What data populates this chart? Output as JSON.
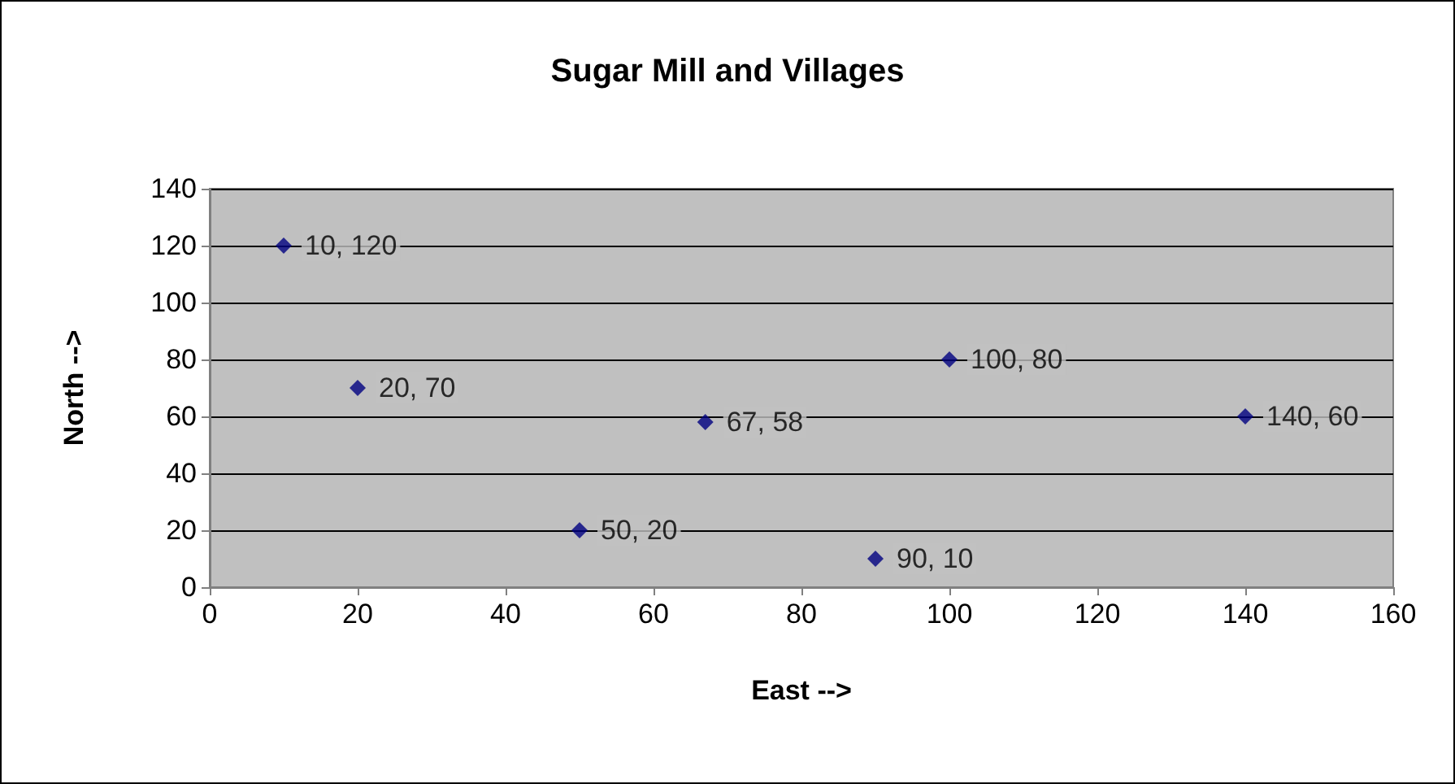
{
  "chart_data": {
    "type": "scatter",
    "title": "Sugar Mill and Villages",
    "xlabel": "East -->",
    "ylabel": "North -->",
    "x": [
      10,
      20,
      50,
      67,
      90,
      100,
      140
    ],
    "values": [
      120,
      70,
      20,
      58,
      10,
      80,
      60
    ],
    "value_labels": [
      "10, 120",
      "20, 70",
      "50, 20",
      "67, 58",
      "90, 10",
      "100, 80",
      "140, 60"
    ],
    "color": "#000080",
    "marker": "diamond",
    "xlim": [
      0,
      160
    ],
    "xticks": [
      0,
      20,
      40,
      60,
      80,
      100,
      120,
      140,
      160
    ],
    "ylim": [
      0,
      140
    ],
    "yticks": [
      0,
      20,
      40,
      60,
      80,
      100,
      120,
      140
    ],
    "grid": "y"
  }
}
